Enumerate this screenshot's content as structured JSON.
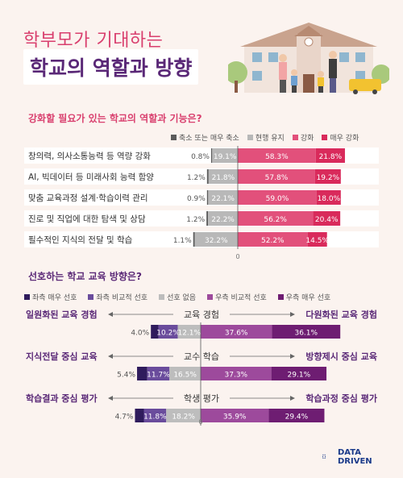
{
  "header": {
    "title_line1": "학부모가 기대하는",
    "title_line2": "학교의 역할과 방향"
  },
  "brand": {
    "line1": "DATA",
    "line2": "DRIVEN"
  },
  "section1": {
    "title": "강화할 필요가 있는 학교의 역할과 기능은?",
    "legend": [
      "축소 또는 매우 축소",
      "현행 유지",
      "강화",
      "매우 강화"
    ],
    "colors": [
      "#5b5b5b",
      "#b8b8b8",
      "#e2507b",
      "#d92a5b"
    ]
  },
  "section2": {
    "title": "선호하는 학교 교육 방향은?",
    "legend": [
      "좌측 매우 선호",
      "좌측 비교적 선호",
      "선호 없음",
      "우측 비교적 선호",
      "우측 매우 선호"
    ],
    "colors": [
      "#2f1b5c",
      "#6a4c9c",
      "#bdbdbd",
      "#9d4a9c",
      "#6e1d72"
    ]
  },
  "chart_data": [
    {
      "type": "bar",
      "title": "강화할 필요가 있는 학교의 역할과 기능은?",
      "categories": [
        "창의력, 의사소통능력 등 역량 강화",
        "AI, 빅데이터 등 미래사회 능력 함양",
        "맞춤 교육과정 설계·학습이력 관리",
        "진로 및 직업에 대한 탐색 및 상담",
        "필수적인 지식의 전달 및 학습"
      ],
      "series": [
        {
          "name": "축소 또는 매우 축소",
          "values": [
            0.8,
            1.2,
            0.9,
            1.2,
            1.1
          ]
        },
        {
          "name": "현행 유지",
          "values": [
            19.1,
            21.8,
            22.1,
            22.2,
            32.2
          ]
        },
        {
          "name": "강화",
          "values": [
            58.3,
            57.8,
            59.0,
            56.2,
            52.2
          ]
        },
        {
          "name": "매우 강화",
          "values": [
            21.8,
            19.2,
            18.0,
            20.4,
            14.5
          ]
        }
      ],
      "labels": [
        [
          "0.8%",
          "19.1%",
          "58.3%",
          "21.8%"
        ],
        [
          "1.2%",
          "21.8%",
          "57.8%",
          "19.2%"
        ],
        [
          "0.9%",
          "22.1%",
          "59.0%",
          "18.0%"
        ],
        [
          "1.2%",
          "22.2%",
          "56.2%",
          "20.4%"
        ],
        [
          "1.1%",
          "32.2%",
          "52.2%",
          "14.5%"
        ]
      ],
      "axis_zero_label": "0"
    },
    {
      "type": "bar",
      "title": "선호하는 학교 교육 방향은?",
      "categories": [
        "교육 경험",
        "교수 학습",
        "학생 평가"
      ],
      "left_labels": [
        "일원화된 교육 경험",
        "지식전달 중심 교육",
        "학습결과 중심 평가"
      ],
      "right_labels": [
        "다원화된 교육 경험",
        "방향제시 중심 교육",
        "학습과정 중심 평가"
      ],
      "series": [
        {
          "name": "좌측 매우 선호",
          "values": [
            4.0,
            5.4,
            4.7
          ]
        },
        {
          "name": "좌측 비교적 선호",
          "values": [
            10.2,
            11.7,
            11.8
          ]
        },
        {
          "name": "선호 없음",
          "values": [
            12.1,
            16.5,
            18.2
          ]
        },
        {
          "name": "우측 비교적 선호",
          "values": [
            37.6,
            37.3,
            35.9
          ]
        },
        {
          "name": "우측 매우 선호",
          "values": [
            36.1,
            29.1,
            29.4
          ]
        }
      ],
      "labels": [
        [
          "4.0%",
          "10.2%",
          "12.1%",
          "37.6%",
          "36.1%"
        ],
        [
          "5.4%",
          "11.7%",
          "16.5%",
          "37.3%",
          "29.1%"
        ],
        [
          "4.7%",
          "11.8%",
          "18.2%",
          "35.9%",
          "29.4%"
        ]
      ],
      "axis_zero_label": "0"
    }
  ]
}
